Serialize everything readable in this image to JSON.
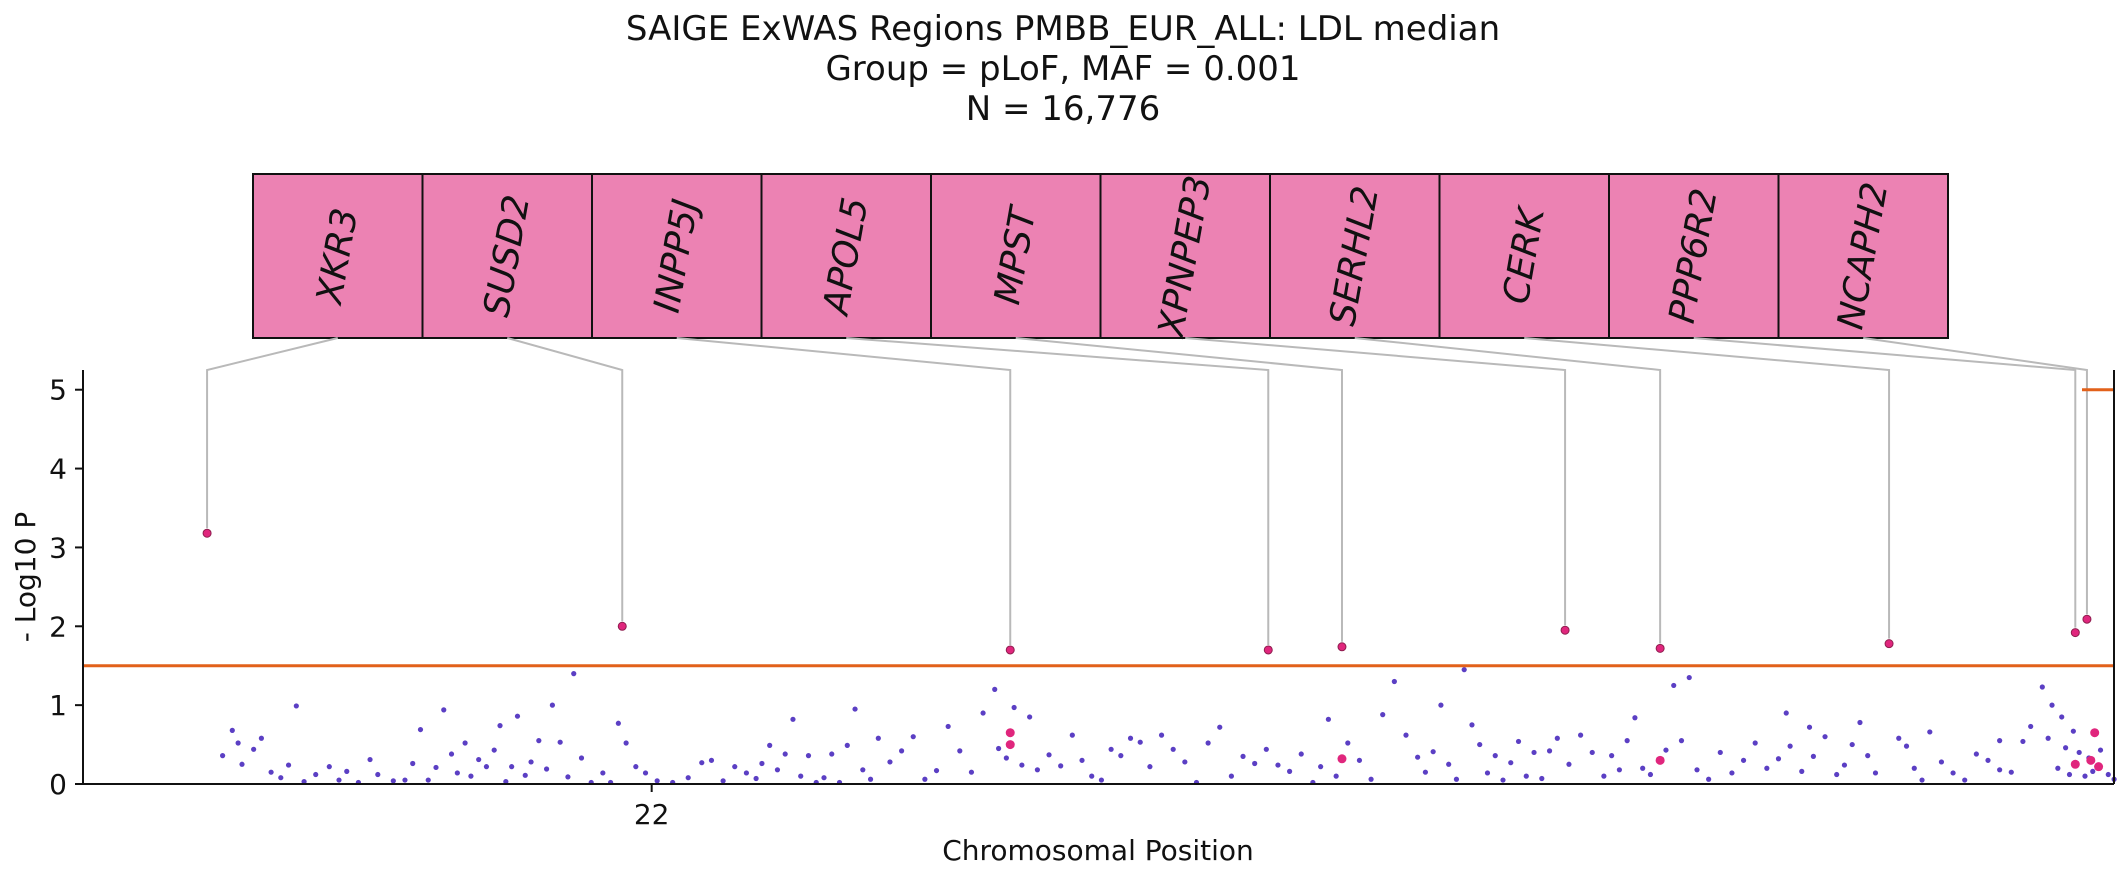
{
  "chart_data": {
    "type": "scatter",
    "title": "SAIGE ExWAS Regions PMBB_EUR_ALL: LDL median",
    "subtitle_lines": [
      "Group = pLoF, MAF = 0.001",
      "N = 16,776"
    ],
    "xlabel": "Chromosomal Position",
    "ylabel": "- Log10 P",
    "x_ticks": [
      {
        "label": "22",
        "pos": 0.28
      }
    ],
    "y_ticks": [
      0,
      1,
      2,
      3,
      4,
      5
    ],
    "ylim": [
      0,
      5.25
    ],
    "grid": false,
    "threshold_lines": [
      {
        "y": 1.5,
        "color": "#e2611a",
        "span": "full"
      },
      {
        "y": 5.0,
        "color": "#e2611a",
        "span": "right-edge"
      }
    ],
    "colors": {
      "background_points": "#5b3fc4",
      "highlight_points": "#e0267d",
      "gene_box_fill": "#ec82b3",
      "connector": "#b9b9b9",
      "axis": "#111111"
    },
    "genes": [
      {
        "name": "XKR3",
        "x": 0.032,
        "y": 3.18
      },
      {
        "name": "SUSD2",
        "x": 0.246,
        "y": 2.0
      },
      {
        "name": "INPP5J",
        "x": 0.446,
        "y": 1.7
      },
      {
        "name": "APOL5",
        "x": 0.579,
        "y": 1.7
      },
      {
        "name": "MPST",
        "x": 0.617,
        "y": 1.74
      },
      {
        "name": "XPNPEP3",
        "x": 0.732,
        "y": 1.95
      },
      {
        "name": "SERHL2",
        "x": 0.781,
        "y": 1.72
      },
      {
        "name": "CERK",
        "x": 0.899,
        "y": 1.78
      },
      {
        "name": "PPP6R2",
        "x": 0.995,
        "y": 1.92
      },
      {
        "name": "NCAPH2",
        "x": 1.001,
        "y": 2.09
      }
    ],
    "highlight_points": [
      {
        "x": 0.446,
        "y": 0.65
      },
      {
        "x": 0.446,
        "y": 0.5
      },
      {
        "x": 0.617,
        "y": 0.32
      },
      {
        "x": 0.781,
        "y": 0.3
      },
      {
        "x": 0.995,
        "y": 0.25
      },
      {
        "x": 1.005,
        "y": 0.65
      },
      {
        "x": 1.003,
        "y": 0.3
      },
      {
        "x": 1.007,
        "y": 0.22
      }
    ],
    "background_points": [
      [
        0.04,
        0.36
      ],
      [
        0.045,
        0.68
      ],
      [
        0.048,
        0.52
      ],
      [
        0.05,
        0.25
      ],
      [
        0.056,
        0.44
      ],
      [
        0.06,
        0.58
      ],
      [
        0.065,
        0.15
      ],
      [
        0.07,
        0.08
      ],
      [
        0.074,
        0.24
      ],
      [
        0.078,
        0.99
      ],
      [
        0.082,
        0.03
      ],
      [
        0.088,
        0.12
      ],
      [
        0.095,
        0.22
      ],
      [
        0.1,
        0.05
      ],
      [
        0.104,
        0.16
      ],
      [
        0.11,
        0.02
      ],
      [
        0.116,
        0.31
      ],
      [
        0.12,
        0.12
      ],
      [
        0.128,
        0.04
      ],
      [
        0.134,
        0.05
      ],
      [
        0.138,
        0.26
      ],
      [
        0.142,
        0.69
      ],
      [
        0.146,
        0.05
      ],
      [
        0.15,
        0.21
      ],
      [
        0.154,
        0.94
      ],
      [
        0.158,
        0.38
      ],
      [
        0.161,
        0.14
      ],
      [
        0.165,
        0.52
      ],
      [
        0.168,
        0.1
      ],
      [
        0.172,
        0.31
      ],
      [
        0.176,
        0.22
      ],
      [
        0.18,
        0.43
      ],
      [
        0.183,
        0.74
      ],
      [
        0.186,
        0.03
      ],
      [
        0.189,
        0.22
      ],
      [
        0.192,
        0.86
      ],
      [
        0.196,
        0.11
      ],
      [
        0.199,
        0.28
      ],
      [
        0.203,
        0.55
      ],
      [
        0.207,
        0.19
      ],
      [
        0.21,
        1.0
      ],
      [
        0.214,
        0.53
      ],
      [
        0.218,
        0.09
      ],
      [
        0.221,
        1.4
      ],
      [
        0.225,
        0.33
      ],
      [
        0.23,
        0.02
      ],
      [
        0.236,
        0.14
      ],
      [
        0.24,
        0.02
      ],
      [
        0.244,
        0.77
      ],
      [
        0.248,
        0.52
      ],
      [
        0.253,
        0.22
      ],
      [
        0.258,
        0.14
      ],
      [
        0.264,
        0.04
      ],
      [
        0.272,
        0.02
      ],
      [
        0.28,
        0.08
      ],
      [
        0.287,
        0.27
      ],
      [
        0.292,
        0.3
      ],
      [
        0.298,
        0.04
      ],
      [
        0.304,
        0.22
      ],
      [
        0.31,
        0.14
      ],
      [
        0.315,
        0.07
      ],
      [
        0.318,
        0.26
      ],
      [
        0.322,
        0.49
      ],
      [
        0.326,
        0.18
      ],
      [
        0.33,
        0.38
      ],
      [
        0.334,
        0.82
      ],
      [
        0.338,
        0.1
      ],
      [
        0.342,
        0.36
      ],
      [
        0.346,
        0.02
      ],
      [
        0.35,
        0.08
      ],
      [
        0.354,
        0.38
      ],
      [
        0.358,
        0.02
      ],
      [
        0.362,
        0.49
      ],
      [
        0.366,
        0.95
      ],
      [
        0.37,
        0.18
      ],
      [
        0.374,
        0.06
      ],
      [
        0.378,
        0.58
      ],
      [
        0.384,
        0.28
      ],
      [
        0.39,
        0.42
      ],
      [
        0.396,
        0.6
      ],
      [
        0.402,
        0.06
      ],
      [
        0.408,
        0.17
      ],
      [
        0.414,
        0.73
      ],
      [
        0.42,
        0.42
      ],
      [
        0.426,
        0.15
      ],
      [
        0.432,
        0.9
      ],
      [
        0.438,
        1.2
      ],
      [
        0.44,
        0.45
      ],
      [
        0.444,
        0.33
      ],
      [
        0.448,
        0.97
      ],
      [
        0.452,
        0.24
      ],
      [
        0.456,
        0.85
      ],
      [
        0.46,
        0.18
      ],
      [
        0.466,
        0.37
      ],
      [
        0.472,
        0.23
      ],
      [
        0.478,
        0.62
      ],
      [
        0.483,
        0.3
      ],
      [
        0.488,
        0.1
      ],
      [
        0.493,
        0.05
      ],
      [
        0.498,
        0.44
      ],
      [
        0.503,
        0.36
      ],
      [
        0.508,
        0.58
      ],
      [
        0.513,
        0.53
      ],
      [
        0.518,
        0.22
      ],
      [
        0.524,
        0.62
      ],
      [
        0.53,
        0.44
      ],
      [
        0.536,
        0.28
      ],
      [
        0.542,
        0.02
      ],
      [
        0.548,
        0.52
      ],
      [
        0.554,
        0.72
      ],
      [
        0.56,
        0.1
      ],
      [
        0.566,
        0.35
      ],
      [
        0.572,
        0.26
      ],
      [
        0.578,
        0.44
      ],
      [
        0.584,
        0.24
      ],
      [
        0.59,
        0.16
      ],
      [
        0.596,
        0.38
      ],
      [
        0.602,
        0.02
      ],
      [
        0.606,
        0.22
      ],
      [
        0.61,
        0.82
      ],
      [
        0.614,
        0.1
      ],
      [
        0.62,
        0.52
      ],
      [
        0.626,
        0.3
      ],
      [
        0.632,
        0.06
      ],
      [
        0.638,
        0.88
      ],
      [
        0.644,
        1.3
      ],
      [
        0.65,
        0.62
      ],
      [
        0.656,
        0.34
      ],
      [
        0.66,
        0.15
      ],
      [
        0.664,
        0.41
      ],
      [
        0.668,
        1.0
      ],
      [
        0.672,
        0.25
      ],
      [
        0.676,
        0.06
      ],
      [
        0.68,
        1.45
      ],
      [
        0.684,
        0.75
      ],
      [
        0.688,
        0.5
      ],
      [
        0.692,
        0.14
      ],
      [
        0.696,
        0.36
      ],
      [
        0.7,
        0.05
      ],
      [
        0.704,
        0.27
      ],
      [
        0.708,
        0.54
      ],
      [
        0.712,
        0.1
      ],
      [
        0.716,
        0.4
      ],
      [
        0.72,
        0.07
      ],
      [
        0.724,
        0.42
      ],
      [
        0.728,
        0.58
      ],
      [
        0.734,
        0.25
      ],
      [
        0.74,
        0.62
      ],
      [
        0.746,
        0.4
      ],
      [
        0.752,
        0.1
      ],
      [
        0.756,
        0.36
      ],
      [
        0.76,
        0.18
      ],
      [
        0.764,
        0.55
      ],
      [
        0.768,
        0.84
      ],
      [
        0.772,
        0.2
      ],
      [
        0.776,
        0.12
      ],
      [
        0.784,
        0.43
      ],
      [
        0.788,
        1.25
      ],
      [
        0.792,
        0.55
      ],
      [
        0.796,
        1.35
      ],
      [
        0.8,
        0.18
      ],
      [
        0.806,
        0.06
      ],
      [
        0.812,
        0.4
      ],
      [
        0.818,
        0.14
      ],
      [
        0.824,
        0.3
      ],
      [
        0.83,
        0.52
      ],
      [
        0.836,
        0.2
      ],
      [
        0.842,
        0.32
      ],
      [
        0.848,
        0.48
      ],
      [
        0.854,
        0.16
      ],
      [
        0.86,
        0.35
      ],
      [
        0.866,
        0.6
      ],
      [
        0.872,
        0.12
      ],
      [
        0.876,
        0.24
      ],
      [
        0.88,
        0.5
      ],
      [
        0.884,
        0.78
      ],
      [
        0.888,
        0.36
      ],
      [
        0.892,
        0.14
      ],
      [
        0.904,
        0.58
      ],
      [
        0.908,
        0.48
      ],
      [
        0.912,
        0.2
      ],
      [
        0.916,
        0.05
      ],
      [
        0.92,
        0.66
      ],
      [
        0.926,
        0.28
      ],
      [
        0.932,
        0.14
      ],
      [
        0.938,
        0.05
      ],
      [
        0.944,
        0.38
      ],
      [
        0.95,
        0.3
      ],
      [
        0.956,
        0.55
      ],
      [
        0.962,
        0.15
      ],
      [
        0.978,
        1.23
      ],
      [
        0.981,
        0.58
      ],
      [
        0.983,
        1.0
      ],
      [
        0.986,
        0.2
      ],
      [
        0.988,
        0.85
      ],
      [
        0.99,
        0.46
      ],
      [
        0.992,
        0.12
      ],
      [
        0.994,
        0.67
      ],
      [
        0.997,
        0.4
      ],
      [
        1.0,
        0.1
      ],
      [
        1.002,
        0.33
      ],
      [
        1.004,
        0.16
      ],
      [
        1.008,
        0.43
      ],
      [
        1.012,
        0.12
      ],
      [
        1.015,
        0.06
      ],
      [
        0.956,
        0.18
      ],
      [
        0.968,
        0.54
      ],
      [
        0.972,
        0.73
      ],
      [
        0.846,
        0.9
      ],
      [
        0.858,
        0.72
      ]
    ]
  }
}
